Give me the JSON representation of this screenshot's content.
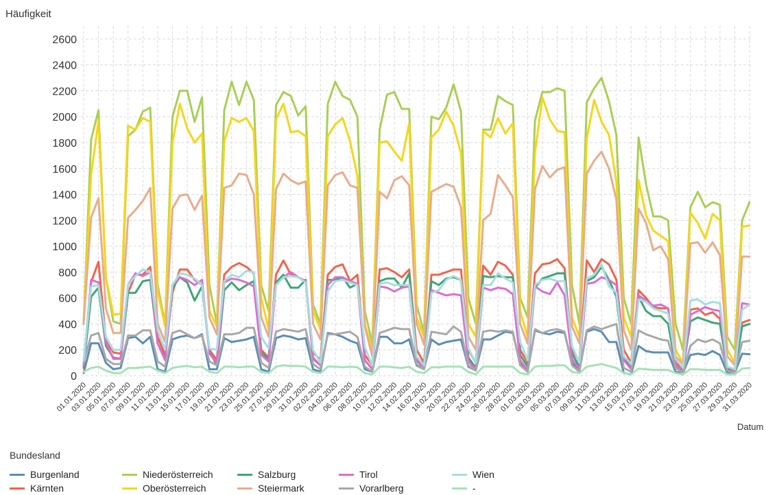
{
  "chart_data": {
    "type": "line",
    "ylabel": "Häufigkeit",
    "xlabel": "Datum",
    "ylim": [
      0,
      2700
    ],
    "yticks": [
      0,
      200,
      400,
      600,
      800,
      1000,
      1200,
      1400,
      1600,
      1800,
      2000,
      2200,
      2400,
      2600
    ],
    "grid": true,
    "x": [
      "01.01.2020",
      "02.01.2020",
      "03.01.2020",
      "04.01.2020",
      "05.01.2020",
      "06.01.2020",
      "07.01.2020",
      "08.01.2020",
      "09.01.2020",
      "10.01.2020",
      "11.01.2020",
      "12.01.2020",
      "13.01.2020",
      "14.01.2020",
      "15.01.2020",
      "16.01.2020",
      "17.01.2020",
      "18.01.2020",
      "19.01.2020",
      "20.01.2020",
      "21.01.2020",
      "22.01.2020",
      "23.01.2020",
      "24.01.2020",
      "25.01.2020",
      "26.01.2020",
      "27.01.2020",
      "28.01.2020",
      "29.01.2020",
      "30.01.2020",
      "31.01.2020",
      "01.02.2020",
      "02.02.2020",
      "03.02.2020",
      "04.02.2020",
      "05.02.2020",
      "06.02.2020",
      "07.02.2020",
      "08.02.2020",
      "09.02.2020",
      "10.02.2020",
      "11.02.2020",
      "12.02.2020",
      "13.02.2020",
      "14.02.2020",
      "15.02.2020",
      "16.02.2020",
      "17.02.2020",
      "18.02.2020",
      "19.02.2020",
      "20.02.2020",
      "21.02.2020",
      "22.02.2020",
      "23.02.2020",
      "24.02.2020",
      "25.02.2020",
      "26.02.2020",
      "27.02.2020",
      "28.02.2020",
      "29.02.2020",
      "01.03.2020",
      "02.03.2020",
      "03.03.2020",
      "04.03.2020",
      "05.03.2020",
      "06.03.2020",
      "07.03.2020",
      "08.03.2020",
      "09.03.2020",
      "10.03.2020",
      "11.03.2020",
      "12.03.2020",
      "13.03.2020",
      "14.03.2020",
      "15.03.2020",
      "16.03.2020",
      "17.03.2020",
      "18.03.2020",
      "19.03.2020",
      "20.03.2020",
      "21.03.2020",
      "22.03.2020",
      "23.03.2020",
      "24.03.2020",
      "25.03.2020",
      "26.03.2020",
      "27.03.2020",
      "28.03.2020",
      "29.03.2020",
      "30.03.2020",
      "31.03.2020"
    ],
    "xtick_labels": [
      "01.01.2020",
      "03.01.2020",
      "05.01.2020",
      "07.01.2020",
      "09.01.2020",
      "11.01.2020",
      "13.01.2020",
      "15.01.2020",
      "17.01.2020",
      "19.01.2020",
      "21.01.2020",
      "23.01.2020",
      "25.01.2020",
      "27.01.2020",
      "29.01.2020",
      "31.01.2020",
      "02.02.2020",
      "04.02.2020",
      "06.02.2020",
      "08.02.2020",
      "10.02.2020",
      "12.02.2020",
      "14.02.2020",
      "16.02.2020",
      "18.02.2020",
      "20.02.2020",
      "22.02.2020",
      "24.02.2020",
      "26.02.2020",
      "28.02.2020",
      "01.03.2020",
      "03.03.2020",
      "05.03.2020",
      "07.03.2020",
      "09.03.2020",
      "11.03.2020",
      "13.03.2020",
      "15.03.2020",
      "17.03.2020",
      "19.03.2020",
      "21.03.2020",
      "23.03.2020",
      "25.03.2020",
      "27.03.2020",
      "29.03.2020",
      "31.03.2020"
    ],
    "legend_title": "Bundesland",
    "legend_position": "bottom",
    "series": [
      {
        "name": "Burgenland",
        "color": "#5b8db8",
        "values": [
          20,
          250,
          250,
          100,
          50,
          60,
          290,
          300,
          250,
          300,
          50,
          30,
          280,
          300,
          310,
          290,
          320,
          50,
          50,
          290,
          260,
          270,
          280,
          300,
          50,
          30,
          290,
          310,
          300,
          280,
          290,
          50,
          30,
          330,
          320,
          300,
          270,
          250,
          50,
          30,
          300,
          300,
          250,
          250,
          280,
          80,
          50,
          280,
          240,
          260,
          270,
          280,
          70,
          40,
          280,
          280,
          310,
          340,
          330,
          100,
          30,
          350,
          330,
          320,
          340,
          330,
          100,
          40,
          340,
          360,
          340,
          260,
          260,
          20,
          10,
          230,
          190,
          180,
          180,
          180,
          30,
          20,
          160,
          170,
          160,
          190,
          160,
          20,
          20,
          170,
          165
        ]
      },
      {
        "name": "Kärnten",
        "color": "#f0644c",
        "values": [
          60,
          720,
          880,
          280,
          180,
          170,
          640,
          780,
          780,
          840,
          300,
          160,
          640,
          820,
          820,
          740,
          700,
          200,
          120,
          780,
          840,
          870,
          840,
          790,
          200,
          140,
          780,
          890,
          780,
          760,
          730,
          180,
          120,
          780,
          840,
          860,
          730,
          780,
          160,
          80,
          820,
          830,
          800,
          760,
          820,
          200,
          100,
          780,
          780,
          800,
          820,
          820,
          200,
          100,
          850,
          780,
          880,
          850,
          780,
          200,
          100,
          790,
          860,
          870,
          900,
          830,
          200,
          110,
          890,
          800,
          900,
          860,
          740,
          200,
          100,
          660,
          600,
          530,
          520,
          520,
          100,
          60,
          510,
          520,
          470,
          490,
          440,
          60,
          40,
          410,
          430
        ]
      },
      {
        "name": "Niederösterreich",
        "color": "#a9cf54",
        "values": [
          400,
          1820,
          2050,
          760,
          420,
          400,
          1850,
          1900,
          2040,
          2070,
          700,
          400,
          2000,
          2200,
          2200,
          1960,
          2150,
          700,
          400,
          2050,
          2270,
          2090,
          2270,
          2130,
          700,
          500,
          2090,
          2190,
          2160,
          2010,
          2080,
          550,
          400,
          2100,
          2270,
          2160,
          2130,
          2000,
          500,
          250,
          1900,
          2170,
          2190,
          2060,
          2060,
          550,
          330,
          2000,
          1980,
          2070,
          2250,
          2040,
          600,
          400,
          1900,
          1900,
          2160,
          2120,
          2090,
          600,
          450,
          1970,
          2190,
          2190,
          2220,
          2200,
          700,
          400,
          2110,
          2220,
          2300,
          2120,
          1860,
          600,
          400,
          1840,
          1480,
          1230,
          1230,
          1200,
          400,
          200,
          1300,
          1420,
          1300,
          1340,
          1320,
          300,
          200,
          1200,
          1340
        ]
      },
      {
        "name": "Oberösterreich",
        "color": "#f7d51a",
        "values": [
          410,
          1550,
          1970,
          760,
          470,
          480,
          1930,
          1900,
          1990,
          1960,
          650,
          380,
          1800,
          2100,
          1910,
          1800,
          1870,
          500,
          380,
          1810,
          1990,
          1960,
          1990,
          1890,
          600,
          360,
          1980,
          2100,
          1880,
          1890,
          1850,
          500,
          360,
          1850,
          1940,
          1990,
          1810,
          1540,
          400,
          200,
          1800,
          1810,
          1730,
          1660,
          1950,
          450,
          300,
          1840,
          1900,
          2040,
          1930,
          1720,
          400,
          300,
          1890,
          1840,
          1990,
          1870,
          1950,
          500,
          300,
          1720,
          2150,
          1980,
          1890,
          1880,
          450,
          300,
          1830,
          2130,
          1960,
          1860,
          1500,
          450,
          300,
          1510,
          1240,
          1120,
          1080,
          1040,
          200,
          100,
          1260,
          1180,
          1060,
          1250,
          1200,
          200,
          100,
          1150,
          1160
        ]
      },
      {
        "name": "Salzburg",
        "color": "#3fa675",
        "values": [
          70,
          610,
          680,
          230,
          140,
          130,
          640,
          640,
          730,
          740,
          250,
          130,
          680,
          760,
          720,
          580,
          690,
          190,
          80,
          660,
          720,
          660,
          700,
          730,
          180,
          130,
          720,
          780,
          680,
          680,
          740,
          130,
          80,
          740,
          740,
          760,
          680,
          710,
          120,
          50,
          730,
          750,
          750,
          680,
          790,
          120,
          60,
          730,
          700,
          750,
          760,
          740,
          140,
          60,
          770,
          760,
          770,
          760,
          760,
          160,
          70,
          680,
          750,
          770,
          790,
          790,
          170,
          70,
          730,
          760,
          840,
          740,
          610,
          140,
          60,
          610,
          500,
          460,
          460,
          400,
          80,
          40,
          420,
          450,
          430,
          410,
          400,
          50,
          30,
          380,
          400
        ]
      },
      {
        "name": "Steiermark",
        "color": "#e8ac8b",
        "values": [
          410,
          1220,
          1370,
          520,
          330,
          330,
          1220,
          1280,
          1350,
          1450,
          400,
          260,
          1290,
          1390,
          1400,
          1280,
          1390,
          450,
          320,
          1450,
          1470,
          1560,
          1550,
          1400,
          450,
          300,
          1440,
          1560,
          1510,
          1480,
          1500,
          400,
          280,
          1470,
          1550,
          1570,
          1470,
          1450,
          380,
          150,
          1420,
          1370,
          1510,
          1540,
          1470,
          400,
          240,
          1420,
          1450,
          1480,
          1460,
          1300,
          300,
          200,
          1200,
          1250,
          1550,
          1470,
          1380,
          400,
          250,
          1440,
          1620,
          1530,
          1590,
          1610,
          380,
          250,
          1560,
          1660,
          1730,
          1600,
          1360,
          350,
          200,
          1290,
          1180,
          970,
          1000,
          900,
          150,
          90,
          1020,
          1030,
          950,
          1030,
          930,
          150,
          80,
          920,
          920
        ]
      },
      {
        "name": "Tirol",
        "color": "#e06bd0",
        "values": [
          80,
          740,
          720,
          260,
          130,
          130,
          700,
          790,
          770,
          800,
          250,
          120,
          700,
          760,
          740,
          700,
          740,
          170,
          100,
          720,
          750,
          740,
          720,
          690,
          160,
          110,
          700,
          760,
          800,
          760,
          730,
          140,
          80,
          700,
          760,
          760,
          730,
          710,
          120,
          50,
          690,
          680,
          650,
          680,
          690,
          130,
          60,
          660,
          640,
          620,
          630,
          620,
          110,
          50,
          680,
          660,
          680,
          670,
          630,
          120,
          40,
          690,
          650,
          630,
          720,
          620,
          130,
          50,
          710,
          720,
          760,
          740,
          700,
          120,
          50,
          620,
          580,
          540,
          550,
          520,
          80,
          30,
          470,
          500,
          530,
          510,
          500,
          40,
          30,
          560,
          550
        ]
      },
      {
        "name": "Vorarlberg",
        "color": "#a8a8a8",
        "values": [
          100,
          310,
          330,
          130,
          90,
          90,
          310,
          310,
          350,
          350,
          110,
          70,
          330,
          350,
          320,
          290,
          310,
          110,
          80,
          320,
          320,
          330,
          370,
          370,
          100,
          60,
          340,
          360,
          350,
          340,
          360,
          90,
          50,
          320,
          320,
          330,
          340,
          300,
          70,
          30,
          330,
          350,
          370,
          360,
          360,
          90,
          50,
          340,
          330,
          320,
          380,
          340,
          80,
          40,
          340,
          350,
          340,
          350,
          340,
          80,
          30,
          360,
          330,
          350,
          360,
          340,
          80,
          30,
          350,
          380,
          360,
          380,
          400,
          60,
          30,
          350,
          320,
          300,
          280,
          270,
          60,
          20,
          230,
          280,
          260,
          280,
          250,
          40,
          20,
          260,
          270
        ]
      },
      {
        "name": "Wien",
        "color": "#a6dde0",
        "values": [
          120,
          690,
          700,
          300,
          200,
          200,
          700,
          770,
          820,
          800,
          350,
          200,
          700,
          790,
          780,
          750,
          700,
          210,
          200,
          730,
          780,
          760,
          810,
          800,
          300,
          210,
          700,
          760,
          770,
          760,
          720,
          200,
          100,
          650,
          730,
          740,
          720,
          700,
          220,
          80,
          710,
          720,
          700,
          700,
          700,
          150,
          80,
          640,
          660,
          740,
          770,
          740,
          210,
          100,
          700,
          700,
          790,
          750,
          720,
          260,
          120,
          700,
          740,
          750,
          730,
          730,
          230,
          100,
          750,
          780,
          860,
          690,
          640,
          150,
          90,
          590,
          570,
          520,
          500,
          480,
          130,
          60,
          580,
          590,
          550,
          570,
          560,
          70,
          50,
          510,
          550
        ]
      },
      {
        "name": "-",
        "color": "#a4e3b4",
        "values": [
          30,
          60,
          70,
          40,
          20,
          20,
          60,
          60,
          65,
          70,
          40,
          20,
          60,
          70,
          75,
          65,
          70,
          30,
          20,
          70,
          70,
          65,
          70,
          70,
          30,
          20,
          70,
          80,
          75,
          75,
          70,
          30,
          20,
          70,
          70,
          65,
          70,
          65,
          20,
          10,
          70,
          70,
          65,
          60,
          70,
          30,
          20,
          65,
          65,
          70,
          70,
          70,
          30,
          10,
          70,
          70,
          70,
          70,
          70,
          20,
          10,
          70,
          75,
          75,
          80,
          80,
          30,
          20,
          70,
          80,
          90,
          75,
          60,
          20,
          10,
          55,
          50,
          45,
          45,
          45,
          20,
          10,
          50,
          50,
          45,
          45,
          45,
          10,
          10,
          55,
          60
        ]
      }
    ]
  }
}
